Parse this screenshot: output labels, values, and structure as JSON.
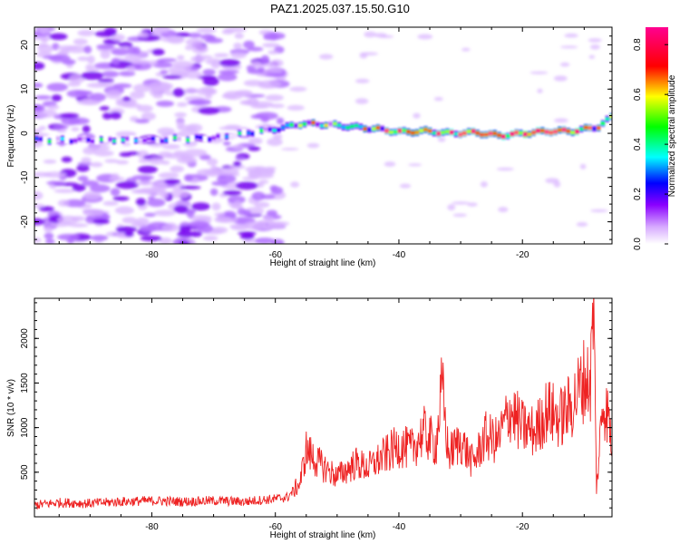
{
  "title": "PAZ1.2025.037.15.50.G10",
  "chart_data": [
    {
      "type": "heatmap",
      "xlabel": "Height of straight line (km)",
      "ylabel": "Frequency (Hz)",
      "xlim": [
        -99,
        -5.5
      ],
      "ylim": [
        -25,
        24
      ],
      "xticks": [
        -80,
        -60,
        -40,
        -20
      ],
      "xtick_labels": [
        "-80",
        "-60",
        "-40",
        "-20"
      ],
      "yticks": [
        -20,
        -10,
        0,
        10,
        20
      ],
      "ytick_labels": [
        "-20",
        "-10",
        "0",
        "10",
        "20"
      ],
      "colorbar": {
        "label": "Normalized spectral amplitude",
        "range": [
          0,
          0.87
        ],
        "ticks": [
          0,
          0.2,
          0.4,
          0.6,
          0.8
        ],
        "tick_labels": [
          "0.0",
          "0.2",
          "0.4",
          "0.6",
          "0.8"
        ],
        "colors": [
          "#ffffff",
          "#a000ff",
          "#0000ff",
          "#00ffff",
          "#00ff00",
          "#ffff00",
          "#ff0000",
          "#ff0090"
        ]
      },
      "noise_region": {
        "x": [
          -99,
          -59
        ],
        "y": [
          -25,
          24
        ],
        "amplitude": 0.15
      },
      "ridge": {
        "x": [
          -99,
          -90,
          -80,
          -70,
          -65,
          -60,
          -56,
          -52,
          -48,
          -44,
          -40,
          -36,
          -32,
          -28,
          -24,
          -20,
          -16,
          -12,
          -8,
          -5.5
        ],
        "frequency": [
          -1.5,
          -1.5,
          -1.5,
          -1.0,
          0.0,
          1.0,
          2.2,
          2.0,
          1.5,
          1.0,
          0.3,
          0.5,
          0.0,
          0.2,
          -0.5,
          0.0,
          0.5,
          0.5,
          1.5,
          4.0
        ],
        "amplitude": [
          0.12,
          0.14,
          0.15,
          0.14,
          0.12,
          0.28,
          0.42,
          0.38,
          0.4,
          0.52,
          0.7,
          0.62,
          0.68,
          0.8,
          0.78,
          0.82,
          0.85,
          0.75,
          0.55,
          0.45
        ]
      },
      "grid": false
    },
    {
      "type": "line",
      "xlabel": "Height of straight line (km)",
      "ylabel": "SNR (10 * v/v)",
      "xlim": [
        -99,
        -5.5
      ],
      "ylim": [
        0,
        2450
      ],
      "xticks": [
        -80,
        -60,
        -40,
        -20
      ],
      "xtick_labels": [
        "-80",
        "-60",
        "-40",
        "-20"
      ],
      "yticks": [
        500,
        1000,
        1500,
        2000
      ],
      "ytick_labels": [
        "500",
        "1000",
        "1500",
        "2000"
      ],
      "series": [
        {
          "color": "#ee2222",
          "x": [
            -99,
            -95,
            -90,
            -85,
            -80,
            -75,
            -70,
            -65,
            -62,
            -60,
            -58,
            -56,
            -55,
            -53,
            -50,
            -47,
            -45,
            -42,
            -40,
            -38,
            -36,
            -34,
            -33,
            -32,
            -30,
            -28,
            -26,
            -24,
            -22,
            -20,
            -18,
            -16,
            -14,
            -12,
            -10,
            -9,
            -8.5,
            -8,
            -7,
            -6,
            -5.5
          ],
          "y": [
            130,
            160,
            150,
            170,
            180,
            170,
            180,
            170,
            190,
            200,
            220,
            380,
            750,
            600,
            450,
            600,
            550,
            700,
            800,
            750,
            950,
            800,
            1450,
            700,
            850,
            600,
            900,
            850,
            1200,
            1000,
            950,
            1200,
            1100,
            1250,
            1550,
            1500,
            2450,
            300,
            1300,
            1100,
            800
          ]
        }
      ],
      "grid": false
    }
  ]
}
